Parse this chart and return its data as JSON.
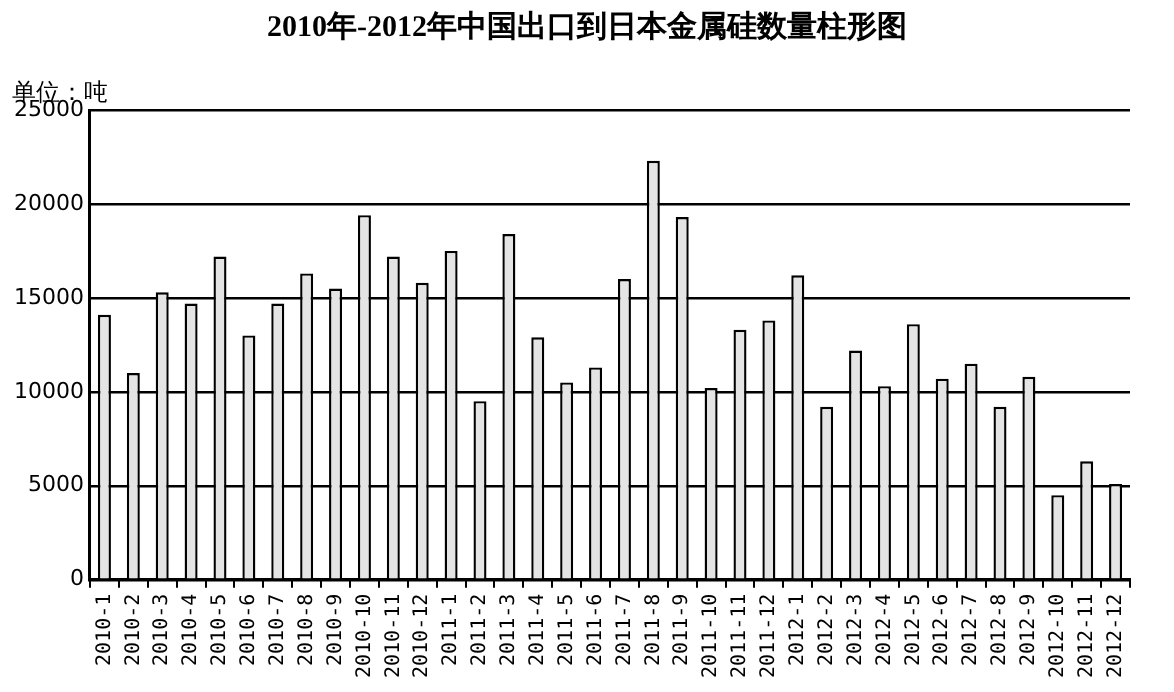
{
  "chart_data": {
    "type": "bar",
    "title": "2010年-2012年中国出口到日本金属硅数量柱形图",
    "annotations": [
      "单位：吨"
    ],
    "categories": [
      "2010-1",
      "2010-2",
      "2010-3",
      "2010-4",
      "2010-5",
      "2010-6",
      "2010-7",
      "2010-8",
      "2010-9",
      "2010-10",
      "2010-11",
      "2010-12",
      "2011-1",
      "2011-2",
      "2011-3",
      "2011-4",
      "2011-5",
      "2011-6",
      "2011-7",
      "2011-8",
      "2011-9",
      "2011-10",
      "2011-11",
      "2011-12",
      "2012-1",
      "2012-2",
      "2012-3",
      "2012-4",
      "2012-5",
      "2012-6",
      "2012-7",
      "2012-8",
      "2012-9",
      "2012-10",
      "2012-11",
      "2012-12"
    ],
    "values": [
      14100,
      11000,
      15300,
      14700,
      17200,
      13000,
      14700,
      16300,
      15500,
      19400,
      17200,
      15800,
      17500,
      9500,
      18400,
      12900,
      10500,
      11300,
      16000,
      22300,
      19300,
      10200,
      13300,
      13800,
      16200,
      9200,
      12200,
      10300,
      13600,
      10700,
      11500,
      9200,
      10800,
      4500,
      6300,
      5100
    ],
    "color": "#e4e4e4",
    "ylim": [
      0,
      25000
    ],
    "yticks": [
      0,
      5000,
      10000,
      15000,
      20000,
      25000
    ],
    "grid": "y",
    "legend": false
  }
}
